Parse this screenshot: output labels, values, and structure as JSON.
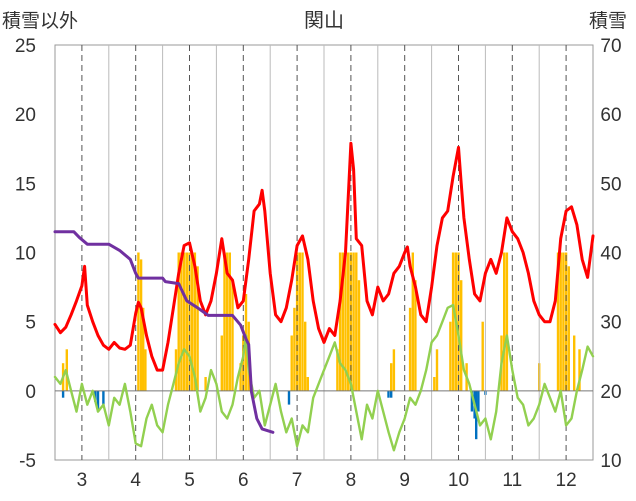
{
  "chart_data": {
    "type": "bar",
    "title": "関山",
    "left_axis_label": "積雪以外",
    "right_axis_label": "積雪",
    "ylim": [
      -5,
      25
    ],
    "yticks": [
      -5,
      0,
      5,
      10,
      15,
      20,
      25
    ],
    "y2lim": [
      10,
      70
    ],
    "y2ticks": [
      10,
      20,
      30,
      40,
      50,
      60,
      70
    ],
    "xlim": [
      2.5,
      12.5
    ],
    "xticks": [
      3,
      4,
      5,
      6,
      7,
      8,
      9,
      10,
      11,
      12
    ],
    "xtick_labels": [
      "3",
      "4",
      "5",
      "6",
      "7",
      "8",
      "9",
      "10",
      "11",
      "12"
    ],
    "grid": "vertical dashed",
    "colors": {
      "red": "#ff0000",
      "green": "#92d050",
      "purple": "#7030a0",
      "orange": "#ffc000",
      "blue": "#0070c0"
    },
    "series": [
      {
        "type": "line",
        "color": "#ff0000",
        "axis": "left",
        "points": [
          [
            2.5,
            4.8
          ],
          [
            2.6,
            4.2
          ],
          [
            2.7,
            4.6
          ],
          [
            2.8,
            5.5
          ],
          [
            2.9,
            6.5
          ],
          [
            3.0,
            7.6
          ],
          [
            3.05,
            9.0
          ],
          [
            3.1,
            6.2
          ],
          [
            3.2,
            5.0
          ],
          [
            3.3,
            4.0
          ],
          [
            3.4,
            3.3
          ],
          [
            3.5,
            3.0
          ],
          [
            3.6,
            3.5
          ],
          [
            3.7,
            3.1
          ],
          [
            3.8,
            3.0
          ],
          [
            3.9,
            3.3
          ],
          [
            4.0,
            5.6
          ],
          [
            4.05,
            6.4
          ],
          [
            4.1,
            6.0
          ],
          [
            4.2,
            4.0
          ],
          [
            4.3,
            2.5
          ],
          [
            4.4,
            1.5
          ],
          [
            4.5,
            1.5
          ],
          [
            4.6,
            3.5
          ],
          [
            4.7,
            6.0
          ],
          [
            4.8,
            8.5
          ],
          [
            4.9,
            10.5
          ],
          [
            5.0,
            10.7
          ],
          [
            5.1,
            9.0
          ],
          [
            5.2,
            6.5
          ],
          [
            5.3,
            5.5
          ],
          [
            5.4,
            6.5
          ],
          [
            5.5,
            8.5
          ],
          [
            5.6,
            11.0
          ],
          [
            5.7,
            8.5
          ],
          [
            5.8,
            8.0
          ],
          [
            5.9,
            6.0
          ],
          [
            6.0,
            6.5
          ],
          [
            6.1,
            9.5
          ],
          [
            6.2,
            13.0
          ],
          [
            6.3,
            13.5
          ],
          [
            6.35,
            14.5
          ],
          [
            6.4,
            13.0
          ],
          [
            6.5,
            8.5
          ],
          [
            6.6,
            5.5
          ],
          [
            6.7,
            5.0
          ],
          [
            6.8,
            6.0
          ],
          [
            6.9,
            8.0
          ],
          [
            7.0,
            10.5
          ],
          [
            7.1,
            11.2
          ],
          [
            7.2,
            9.5
          ],
          [
            7.3,
            6.5
          ],
          [
            7.4,
            4.5
          ],
          [
            7.5,
            3.5
          ],
          [
            7.6,
            4.5
          ],
          [
            7.7,
            4.0
          ],
          [
            7.8,
            6.5
          ],
          [
            7.9,
            10.0
          ],
          [
            8.0,
            17.9
          ],
          [
            8.05,
            16.0
          ],
          [
            8.1,
            11.0
          ],
          [
            8.2,
            10.5
          ],
          [
            8.3,
            6.5
          ],
          [
            8.4,
            5.5
          ],
          [
            8.5,
            7.5
          ],
          [
            8.6,
            6.5
          ],
          [
            8.7,
            7.0
          ],
          [
            8.8,
            8.5
          ],
          [
            8.9,
            9.0
          ],
          [
            9.0,
            10.0
          ],
          [
            9.05,
            10.4
          ],
          [
            9.1,
            9.0
          ],
          [
            9.2,
            7.5
          ],
          [
            9.3,
            5.5
          ],
          [
            9.4,
            5.0
          ],
          [
            9.5,
            7.5
          ],
          [
            9.6,
            10.5
          ],
          [
            9.7,
            12.5
          ],
          [
            9.8,
            13.0
          ],
          [
            9.9,
            15.5
          ],
          [
            10.0,
            17.6
          ],
          [
            10.05,
            15.0
          ],
          [
            10.1,
            12.5
          ],
          [
            10.2,
            9.5
          ],
          [
            10.3,
            7.0
          ],
          [
            10.4,
            6.5
          ],
          [
            10.5,
            8.5
          ],
          [
            10.6,
            9.5
          ],
          [
            10.7,
            8.5
          ],
          [
            10.8,
            10.0
          ],
          [
            10.9,
            12.5
          ],
          [
            11.0,
            11.5
          ],
          [
            11.1,
            11.0
          ],
          [
            11.2,
            10.0
          ],
          [
            11.3,
            8.5
          ],
          [
            11.4,
            6.5
          ],
          [
            11.5,
            5.5
          ],
          [
            11.6,
            5.0
          ],
          [
            11.7,
            5.0
          ],
          [
            11.8,
            6.5
          ],
          [
            11.9,
            11.0
          ],
          [
            12.0,
            13.0
          ],
          [
            12.1,
            13.3
          ],
          [
            12.2,
            12.0
          ],
          [
            12.3,
            9.5
          ],
          [
            12.4,
            8.2
          ],
          [
            12.5,
            11.2
          ]
        ]
      },
      {
        "type": "line",
        "color": "#92d050",
        "axis": "left",
        "points": [
          [
            2.5,
            1.0
          ],
          [
            2.6,
            0.5
          ],
          [
            2.7,
            1.5
          ],
          [
            2.8,
            0.0
          ],
          [
            2.9,
            -1.5
          ],
          [
            3.0,
            0.5
          ],
          [
            3.1,
            -1.0
          ],
          [
            3.2,
            0.0
          ],
          [
            3.3,
            -1.5
          ],
          [
            3.4,
            -1.0
          ],
          [
            3.5,
            -2.5
          ],
          [
            3.6,
            -0.5
          ],
          [
            3.7,
            -1.0
          ],
          [
            3.8,
            0.5
          ],
          [
            3.9,
            -1.5
          ],
          [
            4.0,
            -3.8
          ],
          [
            4.1,
            -4.0
          ],
          [
            4.2,
            -2.0
          ],
          [
            4.3,
            -1.0
          ],
          [
            4.4,
            -2.5
          ],
          [
            4.5,
            -3.0
          ],
          [
            4.6,
            -1.0
          ],
          [
            4.7,
            0.5
          ],
          [
            4.8,
            2.0
          ],
          [
            4.9,
            3.0
          ],
          [
            5.0,
            2.5
          ],
          [
            5.1,
            1.0
          ],
          [
            5.2,
            -1.5
          ],
          [
            5.3,
            -0.5
          ],
          [
            5.4,
            1.5
          ],
          [
            5.5,
            0.5
          ],
          [
            5.6,
            -1.5
          ],
          [
            5.7,
            -2.0
          ],
          [
            5.8,
            -1.0
          ],
          [
            5.9,
            1.0
          ],
          [
            6.0,
            2.5
          ],
          [
            6.05,
            4.0
          ],
          [
            6.1,
            1.5
          ],
          [
            6.2,
            -0.5
          ],
          [
            6.3,
            0.0
          ],
          [
            6.4,
            -2.5
          ],
          [
            6.5,
            -1.0
          ],
          [
            6.6,
            0.5
          ],
          [
            6.7,
            -1.5
          ],
          [
            6.8,
            -3.0
          ],
          [
            6.9,
            -2.0
          ],
          [
            7.0,
            -4.0
          ],
          [
            7.1,
            -2.5
          ],
          [
            7.2,
            -3.0
          ],
          [
            7.3,
            -0.5
          ],
          [
            7.4,
            0.5
          ],
          [
            7.5,
            1.5
          ],
          [
            7.6,
            2.5
          ],
          [
            7.7,
            3.5
          ],
          [
            7.8,
            2.0
          ],
          [
            7.9,
            1.5
          ],
          [
            8.0,
            0.5
          ],
          [
            8.1,
            -1.5
          ],
          [
            8.2,
            -3.5
          ],
          [
            8.3,
            -1.0
          ],
          [
            8.4,
            -2.0
          ],
          [
            8.5,
            0.0
          ],
          [
            8.6,
            -1.5
          ],
          [
            8.7,
            -3.0
          ],
          [
            8.8,
            -4.3
          ],
          [
            8.9,
            -3.0
          ],
          [
            9.0,
            -2.0
          ],
          [
            9.1,
            -0.5
          ],
          [
            9.2,
            -1.0
          ],
          [
            9.3,
            0.0
          ],
          [
            9.4,
            1.5
          ],
          [
            9.5,
            3.5
          ],
          [
            9.6,
            4.0
          ],
          [
            9.7,
            5.0
          ],
          [
            9.8,
            6.0
          ],
          [
            9.9,
            6.2
          ],
          [
            10.0,
            4.0
          ],
          [
            10.1,
            1.5
          ],
          [
            10.2,
            0.5
          ],
          [
            10.3,
            -1.0
          ],
          [
            10.4,
            -2.5
          ],
          [
            10.5,
            -2.0
          ],
          [
            10.6,
            -3.5
          ],
          [
            10.7,
            -1.5
          ],
          [
            10.8,
            2.0
          ],
          [
            10.9,
            4.0
          ],
          [
            11.0,
            1.5
          ],
          [
            11.1,
            -0.5
          ],
          [
            11.2,
            -1.0
          ],
          [
            11.3,
            -2.5
          ],
          [
            11.4,
            -2.0
          ],
          [
            11.5,
            -1.0
          ],
          [
            11.6,
            0.5
          ],
          [
            11.7,
            -0.5
          ],
          [
            11.8,
            -1.5
          ],
          [
            11.9,
            0.0
          ],
          [
            12.0,
            -2.5
          ],
          [
            12.1,
            -2.0
          ],
          [
            12.2,
            0.0
          ],
          [
            12.3,
            1.5
          ],
          [
            12.4,
            3.2
          ],
          [
            12.5,
            2.5
          ]
        ]
      },
      {
        "type": "line",
        "color": "#7030a0",
        "axis": "right",
        "points": [
          [
            2.5,
            43.0
          ],
          [
            2.85,
            43.0
          ],
          [
            2.95,
            42.2
          ],
          [
            3.1,
            41.2
          ],
          [
            3.5,
            41.2
          ],
          [
            3.7,
            40.3
          ],
          [
            3.9,
            39.0
          ],
          [
            4.0,
            37.0
          ],
          [
            4.05,
            36.3
          ],
          [
            4.5,
            36.3
          ],
          [
            4.55,
            35.8
          ],
          [
            4.8,
            35.5
          ],
          [
            4.95,
            33.0
          ],
          [
            5.15,
            32.0
          ],
          [
            5.35,
            30.9
          ],
          [
            5.8,
            30.9
          ],
          [
            5.95,
            29.5
          ],
          [
            6.05,
            27.5
          ],
          [
            6.1,
            26.7
          ],
          [
            6.15,
            19.9
          ],
          [
            6.25,
            16.0
          ],
          [
            6.35,
            14.5
          ],
          [
            6.55,
            14.0
          ]
        ]
      },
      {
        "type": "bar",
        "color": "#ffc000",
        "axis": "left",
        "points": [
          [
            2.65,
            2
          ],
          [
            2.72,
            3
          ],
          [
            4.05,
            10
          ],
          [
            4.1,
            9.5
          ],
          [
            4.14,
            6
          ],
          [
            4.18,
            3
          ],
          [
            4.75,
            3
          ],
          [
            4.8,
            10
          ],
          [
            4.85,
            10
          ],
          [
            4.9,
            10
          ],
          [
            4.95,
            10
          ],
          [
            5.0,
            10
          ],
          [
            5.05,
            10
          ],
          [
            5.1,
            10
          ],
          [
            5.15,
            9
          ],
          [
            5.3,
            1
          ],
          [
            5.6,
            4
          ],
          [
            5.65,
            10
          ],
          [
            5.7,
            10
          ],
          [
            5.75,
            10
          ],
          [
            5.8,
            8
          ],
          [
            5.95,
            2
          ],
          [
            6.0,
            4
          ],
          [
            6.05,
            7
          ],
          [
            6.1,
            5
          ],
          [
            6.9,
            4
          ],
          [
            6.95,
            6
          ],
          [
            7.0,
            10
          ],
          [
            7.05,
            10
          ],
          [
            7.1,
            10
          ],
          [
            7.15,
            5
          ],
          [
            7.2,
            1
          ],
          [
            7.75,
            3
          ],
          [
            7.8,
            10
          ],
          [
            7.85,
            10
          ],
          [
            7.9,
            10
          ],
          [
            7.95,
            10
          ],
          [
            8.0,
            10
          ],
          [
            8.05,
            10
          ],
          [
            8.1,
            10
          ],
          [
            8.15,
            8
          ],
          [
            8.75,
            2
          ],
          [
            8.8,
            3
          ],
          [
            9.1,
            6
          ],
          [
            9.15,
            10
          ],
          [
            9.2,
            8
          ],
          [
            9.55,
            1
          ],
          [
            9.6,
            3
          ],
          [
            9.85,
            5
          ],
          [
            9.9,
            10
          ],
          [
            9.95,
            10
          ],
          [
            10.0,
            10
          ],
          [
            10.05,
            8
          ],
          [
            10.15,
            2
          ],
          [
            10.45,
            5
          ],
          [
            10.8,
            4
          ],
          [
            10.85,
            10
          ],
          [
            10.9,
            10
          ],
          [
            11.5,
            2
          ],
          [
            11.85,
            10
          ],
          [
            11.9,
            10
          ],
          [
            11.95,
            10
          ],
          [
            12.0,
            10
          ],
          [
            12.05,
            9
          ],
          [
            12.15,
            4
          ],
          [
            12.25,
            3
          ]
        ]
      },
      {
        "type": "bar",
        "color": "#0070c0",
        "axis": "left",
        "points": [
          [
            2.65,
            -0.5
          ],
          [
            3.25,
            -0.8
          ],
          [
            3.3,
            -1.5
          ],
          [
            3.4,
            -1.2
          ],
          [
            6.85,
            -1.0
          ],
          [
            8.7,
            -0.5
          ],
          [
            8.75,
            -0.5
          ],
          [
            10.25,
            -1.5
          ],
          [
            10.3,
            -2.0
          ],
          [
            10.33,
            -3.5
          ],
          [
            10.37,
            -1.5
          ],
          [
            10.5,
            -0.3
          ]
        ]
      }
    ]
  }
}
